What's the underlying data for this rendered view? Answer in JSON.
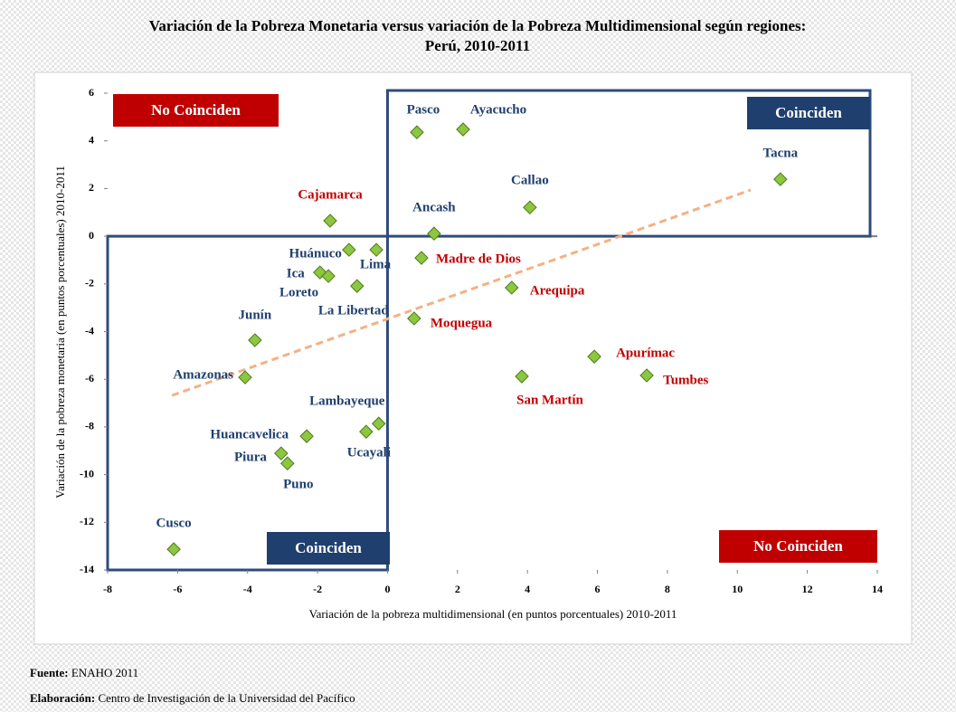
{
  "chart_data": {
    "type": "scatter",
    "title": [
      "Variación de la Pobreza Monetaria versus variación de la Pobreza Multidimensional según regiones:",
      "Perú, 2010-2011"
    ],
    "x_label": "Variación de la pobreza multidimensional (en puntos porcentuales) 2010-2011",
    "y_label": "Variación de la pobreza monetaria (en puntos porcentuales) 2010-2011",
    "xlim": [
      -8,
      14
    ],
    "xticks": [
      -8,
      -6,
      -4,
      -2,
      0,
      2,
      4,
      6,
      8,
      10,
      12,
      14
    ],
    "ylim": [
      -14,
      6
    ],
    "yticks": [
      -14,
      -12,
      -10,
      -8,
      -6,
      -4,
      -2,
      0,
      2,
      4,
      6
    ],
    "marker_color": "#8dc63f",
    "label_colors": {
      "blue": "#1f3f6e",
      "red": "#c00000"
    },
    "points": [
      {
        "name": "Pasco",
        "x": 0.84,
        "y": 4.36,
        "label_color": "blue"
      },
      {
        "name": "Ayacucho",
        "x": 2.16,
        "y": 4.48,
        "label_color": "blue"
      },
      {
        "name": "Tacna",
        "x": 11.23,
        "y": 2.39,
        "label_color": "blue"
      },
      {
        "name": "Callao",
        "x": 4.07,
        "y": 1.21,
        "label_color": "blue"
      },
      {
        "name": "Ancash",
        "x": 1.33,
        "y": 0.11,
        "label_color": "blue"
      },
      {
        "name": "Cajamarca",
        "x": -1.64,
        "y": 0.65,
        "label_color": "red"
      },
      {
        "name": "Huánuco",
        "x": -1.1,
        "y": -0.57,
        "label_color": "blue"
      },
      {
        "name": "Lima",
        "x": -0.32,
        "y": -0.57,
        "label_color": "blue"
      },
      {
        "name": "Ica",
        "x": -1.93,
        "y": -1.52,
        "label_color": "blue"
      },
      {
        "name": "Loreto",
        "x": -1.69,
        "y": -1.67,
        "label_color": "blue"
      },
      {
        "name": "La Libertad",
        "x": -0.87,
        "y": -2.09,
        "label_color": "blue"
      },
      {
        "name": "Madre de Dios",
        "x": 0.97,
        "y": -0.91,
        "label_color": "red"
      },
      {
        "name": "Arequipa",
        "x": 3.55,
        "y": -2.16,
        "label_color": "red"
      },
      {
        "name": "Moquegua",
        "x": 0.76,
        "y": -3.45,
        "label_color": "red"
      },
      {
        "name": "Junín",
        "x": -3.79,
        "y": -4.36,
        "label_color": "blue"
      },
      {
        "name": "Amazonas",
        "x": -4.07,
        "y": -5.92,
        "label_color": "blue"
      },
      {
        "name": "Apurímac",
        "x": 5.91,
        "y": -5.05,
        "label_color": "red"
      },
      {
        "name": "Tumbes",
        "x": 7.41,
        "y": -5.84,
        "label_color": "red"
      },
      {
        "name": "San Martín",
        "x": 3.84,
        "y": -5.88,
        "label_color": "red"
      },
      {
        "name": "Lambayeque",
        "x": -0.25,
        "y": -7.86,
        "label_color": "blue"
      },
      {
        "name": "Ucayali",
        "x": -0.61,
        "y": -8.2,
        "label_color": "blue"
      },
      {
        "name": "Huancavelica",
        "x": -2.31,
        "y": -8.39,
        "label_color": "blue"
      },
      {
        "name": "Piura",
        "x": -3.04,
        "y": -9.11,
        "label_color": "blue"
      },
      {
        "name": "Puno",
        "x": -2.86,
        "y": -9.53,
        "label_color": "blue"
      },
      {
        "name": "Cusco",
        "x": -6.11,
        "y": -13.13,
        "label_color": "blue"
      }
    ],
    "trendline": {
      "x": [
        -6.16,
        10.38
      ],
      "y": [
        -6.68,
        1.94
      ],
      "color": "#f4b183"
    },
    "annotations": [
      "No Coinciden",
      "Coinciden",
      "Coinciden",
      "No Coinciden"
    ]
  },
  "footer": {
    "source_label": "Fuente:",
    "source": "ENAHO 2011",
    "credit_label": "Elaboración:",
    "credit": "Centro de Investigación de la Universidad del Pacífico"
  }
}
